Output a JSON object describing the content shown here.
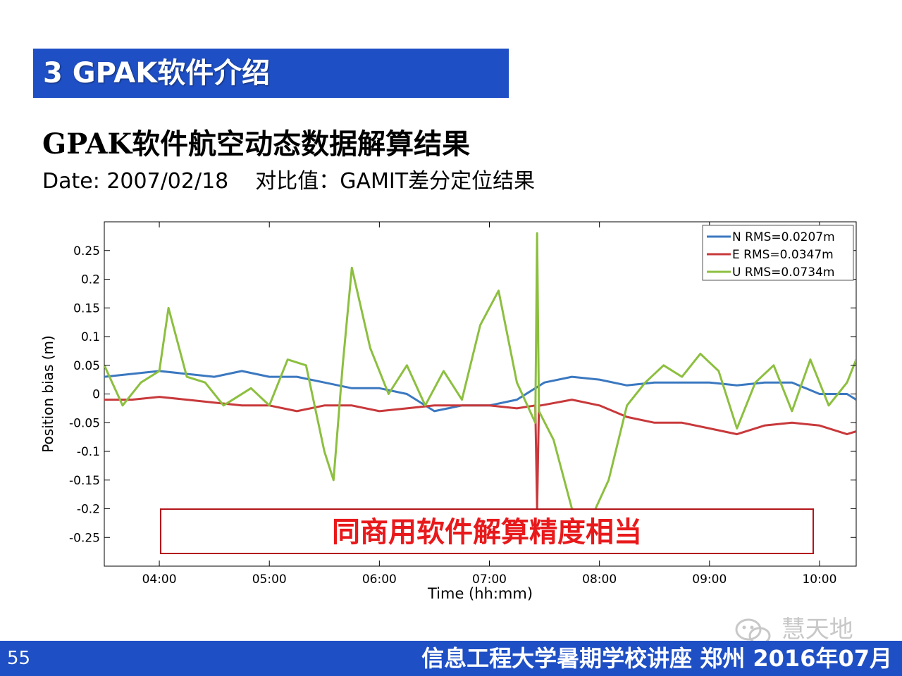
{
  "slide": {
    "section_title": "3 GPAK软件介绍",
    "heading": "GPAK软件航空动态数据解算结果",
    "date_text": "Date: 2007/02/18",
    "compare_text": "对比值：GAMIT差分定位结果",
    "page_number": "55",
    "footer_text": "信息工程大学暑期学校讲座  郑州  2016年07月",
    "watermark_text": "慧天地",
    "accent_color": "#1f4fc4"
  },
  "chart_data": {
    "type": "line",
    "title": "",
    "xlabel": "Time (hh:mm)",
    "ylabel": "Position bias (m)",
    "xlim": [
      "03:30",
      "10:20"
    ],
    "ylim": [
      -0.3,
      0.3
    ],
    "x_ticks": [
      "04:00",
      "05:00",
      "06:00",
      "07:00",
      "08:00",
      "09:00",
      "10:00"
    ],
    "y_ticks": [
      -0.25,
      -0.2,
      -0.15,
      -0.1,
      -0.05,
      0,
      0.05,
      0.1,
      0.15,
      0.2,
      0.25
    ],
    "y_tick_labels": [
      "-0.25",
      "-0.2",
      "-0.15",
      "-0.1",
      "-0.05",
      "0",
      "0.05",
      "0.1",
      "0.15",
      "0.2",
      "0.25"
    ],
    "grid": false,
    "legend_position": "top-right",
    "annotation": "同商用软件解算精度相当",
    "annotation_color": "#e8191b",
    "series": [
      {
        "name": "N RMS=0.0207m",
        "color": "#3b78c0",
        "x": [
          "03:30",
          "03:45",
          "04:00",
          "04:15",
          "04:30",
          "04:45",
          "05:00",
          "05:15",
          "05:30",
          "05:45",
          "06:00",
          "06:15",
          "06:30",
          "06:45",
          "07:00",
          "07:15",
          "07:30",
          "07:45",
          "08:00",
          "08:15",
          "08:30",
          "08:45",
          "09:00",
          "09:15",
          "09:30",
          "09:45",
          "10:00",
          "10:15",
          "10:20"
        ],
        "y": [
          0.03,
          0.035,
          0.04,
          0.035,
          0.03,
          0.04,
          0.03,
          0.03,
          0.02,
          0.01,
          0.01,
          0.0,
          -0.03,
          -0.02,
          -0.02,
          -0.01,
          0.02,
          0.03,
          0.025,
          0.015,
          0.02,
          0.02,
          0.02,
          0.015,
          0.02,
          0.02,
          0.0,
          0.0,
          -0.01
        ]
      },
      {
        "name": "E RMS=0.0347m",
        "color": "#c8393b",
        "x": [
          "03:30",
          "03:45",
          "04:00",
          "04:15",
          "04:30",
          "04:45",
          "05:00",
          "05:15",
          "05:30",
          "05:45",
          "06:00",
          "06:15",
          "06:30",
          "06:45",
          "07:00",
          "07:15",
          "07:25",
          "07:26",
          "07:27",
          "07:28",
          "07:45",
          "08:00",
          "08:15",
          "08:30",
          "08:45",
          "09:00",
          "09:15",
          "09:30",
          "09:45",
          "10:00",
          "10:15",
          "10:20"
        ],
        "y": [
          -0.01,
          -0.01,
          -0.005,
          -0.01,
          -0.015,
          -0.02,
          -0.02,
          -0.03,
          -0.02,
          -0.02,
          -0.03,
          -0.025,
          -0.02,
          -0.02,
          -0.02,
          -0.025,
          -0.02,
          -0.2,
          -0.02,
          -0.02,
          -0.01,
          -0.02,
          -0.04,
          -0.05,
          -0.05,
          -0.06,
          -0.07,
          -0.055,
          -0.05,
          -0.055,
          -0.07,
          -0.065
        ]
      },
      {
        "name": "U RMS=0.0734m",
        "color": "#8cbf3f",
        "x": [
          "03:30",
          "03:40",
          "03:50",
          "04:00",
          "04:05",
          "04:15",
          "04:25",
          "04:35",
          "04:50",
          "05:00",
          "05:10",
          "05:20",
          "05:30",
          "05:35",
          "05:40",
          "05:45",
          "05:55",
          "06:05",
          "06:15",
          "06:25",
          "06:35",
          "06:45",
          "06:55",
          "07:05",
          "07:15",
          "07:25",
          "07:26",
          "07:27",
          "07:35",
          "07:45",
          "07:55",
          "08:05",
          "08:15",
          "08:25",
          "08:35",
          "08:45",
          "08:55",
          "09:05",
          "09:15",
          "09:25",
          "09:35",
          "09:45",
          "09:55",
          "10:05",
          "10:15",
          "10:20"
        ],
        "y": [
          0.05,
          -0.02,
          0.02,
          0.04,
          0.15,
          0.03,
          0.02,
          -0.02,
          0.01,
          -0.02,
          0.06,
          0.05,
          -0.1,
          -0.15,
          0.05,
          0.22,
          0.08,
          0.0,
          0.05,
          -0.02,
          0.04,
          -0.01,
          0.12,
          0.18,
          0.02,
          -0.05,
          0.28,
          -0.03,
          -0.08,
          -0.2,
          -0.22,
          -0.15,
          -0.02,
          0.02,
          0.05,
          0.03,
          0.07,
          0.04,
          -0.06,
          0.02,
          0.05,
          -0.03,
          0.06,
          -0.02,
          0.02,
          0.06
        ]
      }
    ]
  }
}
